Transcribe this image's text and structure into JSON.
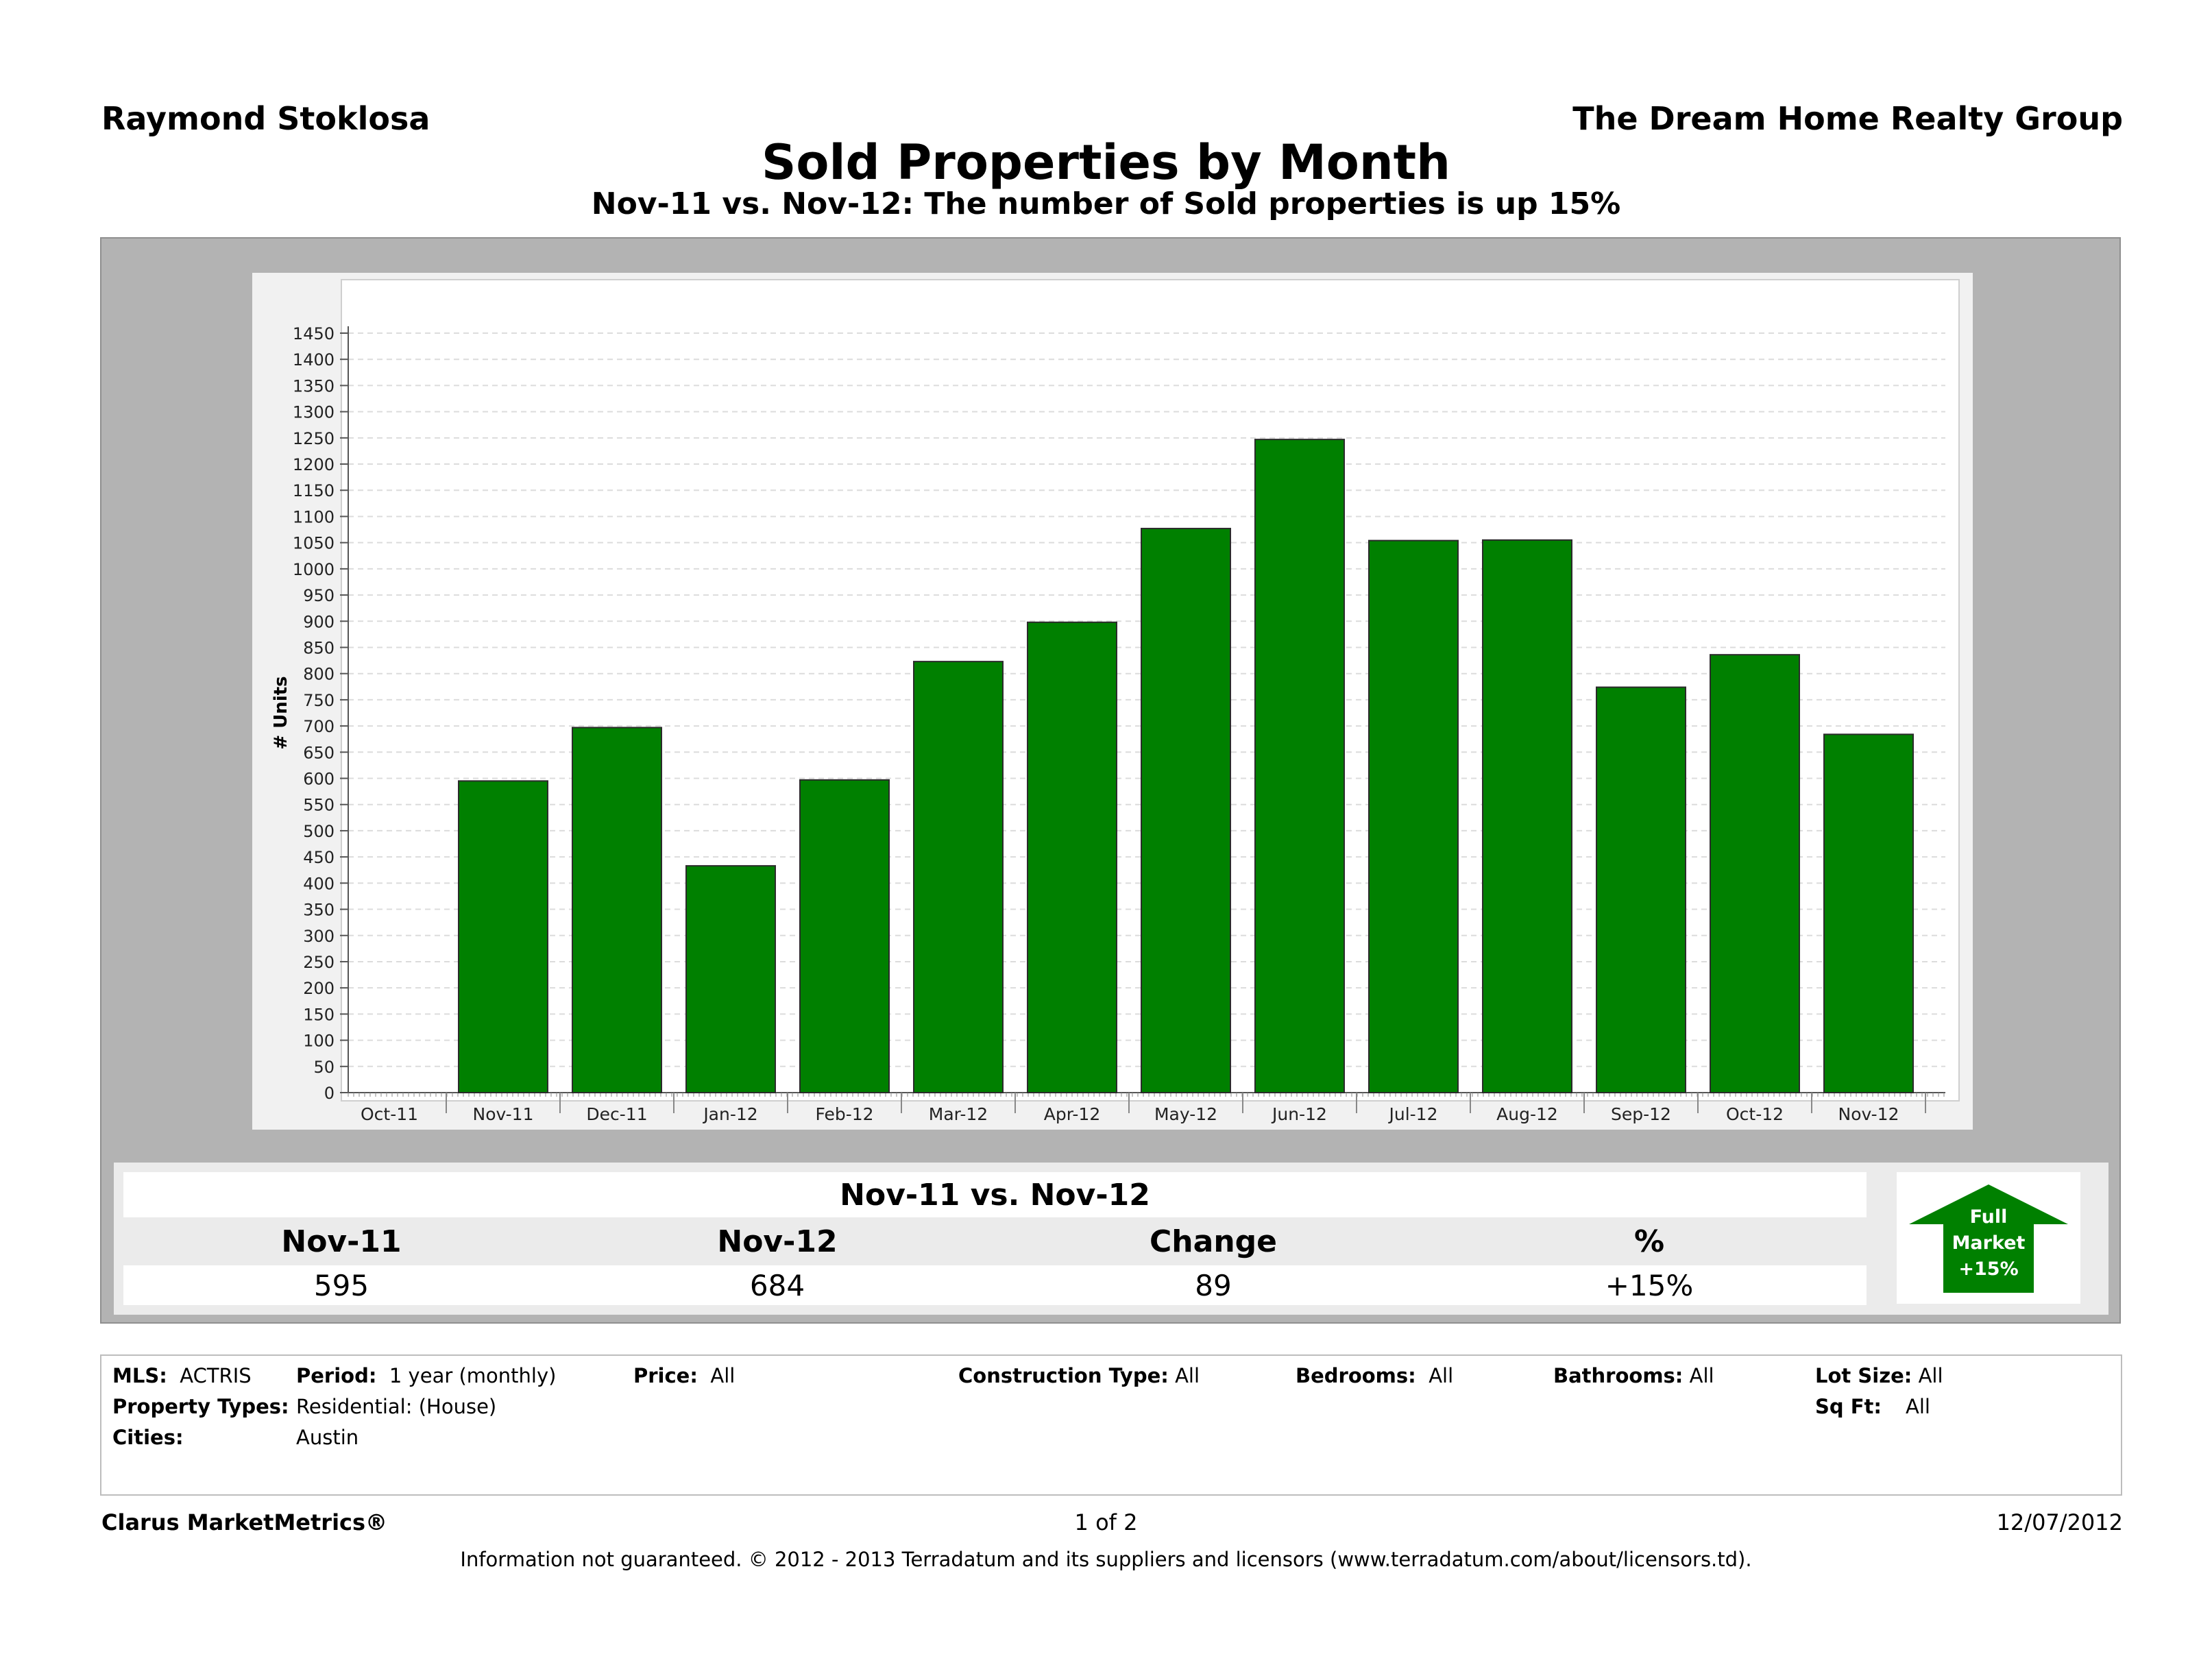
{
  "header": {
    "agent": "Raymond Stoklosa",
    "company": "The Dream Home Realty Group",
    "title": "Sold Properties by Month",
    "subtitle": "Nov-11 vs. Nov-12: The number of Sold properties is up 15%"
  },
  "chart_data": {
    "type": "bar",
    "title": "Sold Properties by Month",
    "subtitle": "Nov-11 vs. Nov-12: The number of Sold properties is up 15%",
    "xlabel": "",
    "ylabel": "# Units",
    "categories": [
      "Oct-11",
      "Nov-11",
      "Dec-11",
      "Jan-12",
      "Feb-12",
      "Mar-12",
      "Apr-12",
      "May-12",
      "Jun-12",
      "Jul-12",
      "Aug-12",
      "Sep-12",
      "Oct-12",
      "Nov-12"
    ],
    "values": [
      null,
      595,
      697,
      433,
      597,
      823,
      898,
      1077,
      1247,
      1054,
      1055,
      774,
      836,
      684
    ],
    "ylim": [
      0,
      1450
    ],
    "yticks": [
      0,
      50,
      100,
      150,
      200,
      250,
      300,
      350,
      400,
      450,
      500,
      550,
      600,
      650,
      700,
      750,
      800,
      850,
      900,
      950,
      1000,
      1050,
      1100,
      1150,
      1200,
      1250,
      1300,
      1350,
      1400,
      1450
    ],
    "grid": true,
    "bar_color": "#008000"
  },
  "summary": {
    "title": "Nov-11 vs. Nov-12",
    "headers": [
      "Nov-11",
      "Nov-12",
      "Change",
      "%"
    ],
    "values": [
      "595",
      "684",
      "89",
      "+15%"
    ],
    "badge": {
      "line1": "Full",
      "line2": "Market",
      "line3": "+15%",
      "color": "#008000"
    }
  },
  "criteria": {
    "mls_label": "MLS:",
    "mls_value": "ACTRIS",
    "period_label": "Period:",
    "period_value": "1 year (monthly)",
    "price_label": "Price:",
    "price_value": "All",
    "construction_label": "Construction Type:",
    "construction_value": "All",
    "bedrooms_label": "Bedrooms:",
    "bedrooms_value": "All",
    "bathrooms_label": "Bathrooms:",
    "bathrooms_value": "All",
    "lotsize_label": "Lot Size:",
    "lotsize_value": "All",
    "proptypes_label": "Property Types:",
    "proptypes_value": "Residential: (House)",
    "sqft_label": "Sq Ft:",
    "sqft_value": "All",
    "cities_label": "Cities:",
    "cities_value": "Austin"
  },
  "footer": {
    "brand": "Clarus MarketMetrics®",
    "page": "1 of 2",
    "date": "12/07/2012",
    "note": "Information not guaranteed.  © 2012 - 2013 Terradatum and its suppliers and licensors (www.terradatum.com/about/licensors.td)."
  }
}
